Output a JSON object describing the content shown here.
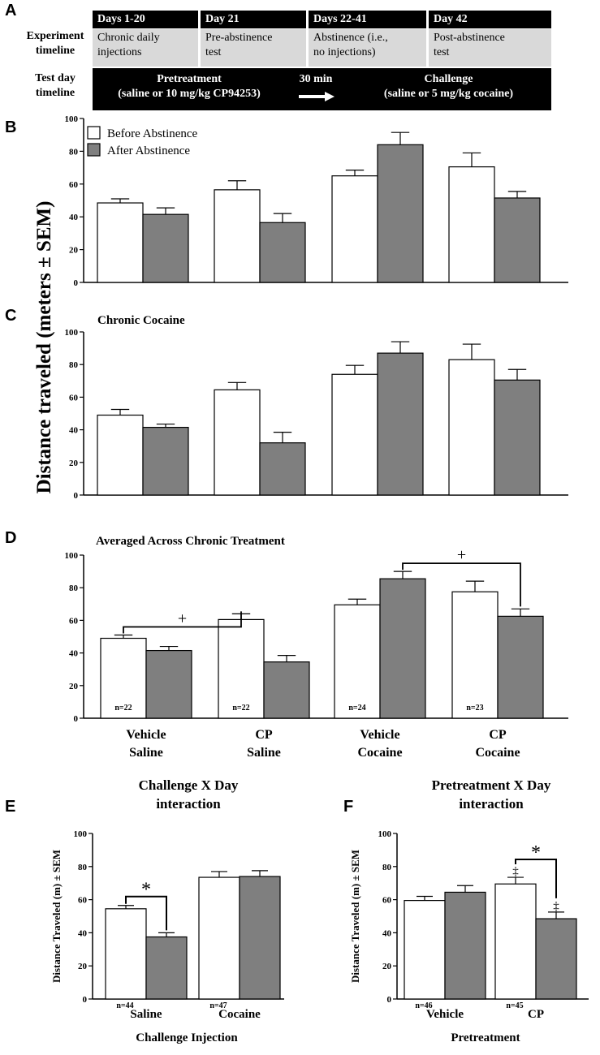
{
  "colors": {
    "before": "#ffffff",
    "after": "#7f7f7f",
    "timeline_cell": "#d9d9d9"
  },
  "panel_a": {
    "letter": "A",
    "row1_label_line1": "Experiment",
    "row1_label_line2": "timeline",
    "row2_label_line1": "Test day",
    "row2_label_line2": "timeline",
    "phases": [
      {
        "head": "Days 1-20",
        "line1": "Chronic daily",
        "line2": "injections"
      },
      {
        "head": "Day 21",
        "line1": "Pre-abstinence",
        "line2": "test"
      },
      {
        "head": "Days 22-41",
        "line1": "Abstinence (i.e.,",
        "line2": "no injections)"
      },
      {
        "head": "Day 42",
        "line1": "Post-abstinence",
        "line2": "test"
      }
    ],
    "pretreatment_line1": "Pretreatment",
    "pretreatment_line2": "(saline or 10 mg/kg CP94253)",
    "interval": "30 min",
    "challenge_line1": "Challenge",
    "challenge_line2": "(saline or 5 mg/kg cocaine)"
  },
  "shared_ylabel": "Distance traveled (meters ± SEM)",
  "chart_data": [
    {
      "panel": "B",
      "type": "bar",
      "title": "",
      "legend": [
        "Before Abstinence",
        "After Abstinence"
      ],
      "series": [
        {
          "name": "Before Abstinence",
          "values": [
            48.5,
            56.5,
            65,
            70.5
          ],
          "errors": [
            2.5,
            5.5,
            3.5,
            8.5
          ]
        },
        {
          "name": "After Abstinence",
          "values": [
            41.5,
            36.5,
            84,
            51.5
          ],
          "errors": [
            4,
            5.5,
            7.5,
            4
          ]
        }
      ],
      "ylim": [
        0,
        100
      ],
      "yticks": [
        0,
        20,
        40,
        60,
        80,
        100
      ]
    },
    {
      "panel": "C",
      "type": "bar",
      "title": "Chronic Cocaine",
      "series": [
        {
          "name": "Before Abstinence",
          "values": [
            49,
            64.5,
            74,
            83
          ],
          "errors": [
            3.5,
            4.5,
            5.5,
            9.5
          ]
        },
        {
          "name": "After Abstinence",
          "values": [
            41.5,
            32,
            87,
            70.5
          ],
          "errors": [
            2,
            6.5,
            7,
            6.5
          ]
        }
      ],
      "ylim": [
        0,
        100
      ],
      "yticks": [
        0,
        20,
        40,
        60,
        80,
        100
      ]
    },
    {
      "panel": "D",
      "type": "bar",
      "title": "Averaged Across Chronic Treatment",
      "categories": [
        [
          "Vehicle",
          "Saline"
        ],
        [
          "CP",
          "Saline"
        ],
        [
          "Vehicle",
          "Cocaine"
        ],
        [
          "CP",
          "Cocaine"
        ]
      ],
      "n_labels": [
        "n=22",
        "n=22",
        "n=24",
        "n=23"
      ],
      "series": [
        {
          "name": "Before Abstinence",
          "values": [
            49,
            60.5,
            69.5,
            77.5
          ],
          "errors": [
            2,
            3.5,
            3.5,
            6.5
          ]
        },
        {
          "name": "After Abstinence",
          "values": [
            41.5,
            34.5,
            85.5,
            62.5
          ],
          "errors": [
            2.5,
            4,
            4.5,
            4.5
          ]
        }
      ],
      "sig_marks": [
        "+",
        "+"
      ],
      "ylim": [
        0,
        100
      ],
      "yticks": [
        0,
        20,
        40,
        60,
        80,
        100
      ]
    },
    {
      "panel": "E",
      "type": "bar",
      "title_line1": "Challenge X Day",
      "title_line2": "interaction",
      "categories": [
        "Saline",
        "Cocaine"
      ],
      "n_labels": [
        "n=44",
        "n=47"
      ],
      "series": [
        {
          "name": "Before Abstinence",
          "values": [
            54.5,
            73.5
          ],
          "errors": [
            2,
            3.5
          ]
        },
        {
          "name": "After Abstinence",
          "values": [
            37.5,
            74
          ],
          "errors": [
            2.5,
            3.5
          ]
        }
      ],
      "sig_marks": [
        "*"
      ],
      "xlabel": "Challenge Injection",
      "ylabel": "Distance Traveled (m) ± SEM",
      "ylim": [
        0,
        100
      ],
      "yticks": [
        0,
        20,
        40,
        60,
        80,
        100
      ]
    },
    {
      "panel": "F",
      "type": "bar",
      "title_line1": "Pretreatment X Day",
      "title_line2": "interaction",
      "categories": [
        "Vehicle",
        "CP"
      ],
      "n_labels": [
        "n=46",
        "n=45"
      ],
      "series": [
        {
          "name": "Before Abstinence",
          "values": [
            59.5,
            69.5
          ],
          "errors": [
            2.5,
            4
          ]
        },
        {
          "name": "After Abstinence",
          "values": [
            64.5,
            48.5
          ],
          "errors": [
            4,
            4
          ]
        }
      ],
      "sig_marks": [
        "*",
        "‡",
        "‡"
      ],
      "xlabel": "Pretreatment",
      "ylabel": "Distance Traveled (m) ± SEM",
      "ylim": [
        0,
        100
      ],
      "yticks": [
        0,
        20,
        40,
        60,
        80,
        100
      ]
    }
  ]
}
